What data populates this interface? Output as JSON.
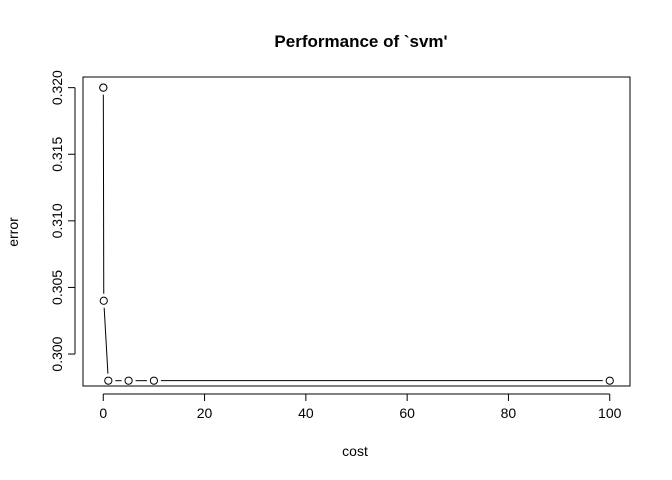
{
  "chart_data": {
    "type": "line",
    "title": "Performance of `svm'",
    "xlabel": "cost",
    "ylabel": "error",
    "xlim": [
      -4,
      104
    ],
    "ylim": [
      0.2976,
      0.3208
    ],
    "x_ticks": [
      0,
      20,
      40,
      60,
      80,
      100
    ],
    "x_tick_labels": [
      "0",
      "20",
      "40",
      "60",
      "80",
      "100"
    ],
    "y_ticks": [
      0.3,
      0.305,
      0.31,
      0.315,
      0.32
    ],
    "y_tick_labels": [
      "0.300",
      "0.305",
      "0.310",
      "0.315",
      "0.320"
    ],
    "grid": false,
    "legend": "none",
    "series": [
      {
        "x": [
          0.001,
          0.01,
          0.1,
          1,
          5,
          10,
          100
        ],
        "y": [
          0.32,
          0.32,
          0.304,
          0.298,
          0.298,
          0.298,
          0.298
        ]
      }
    ],
    "colors": {
      "line": "#000000",
      "marker": "#000000"
    }
  }
}
